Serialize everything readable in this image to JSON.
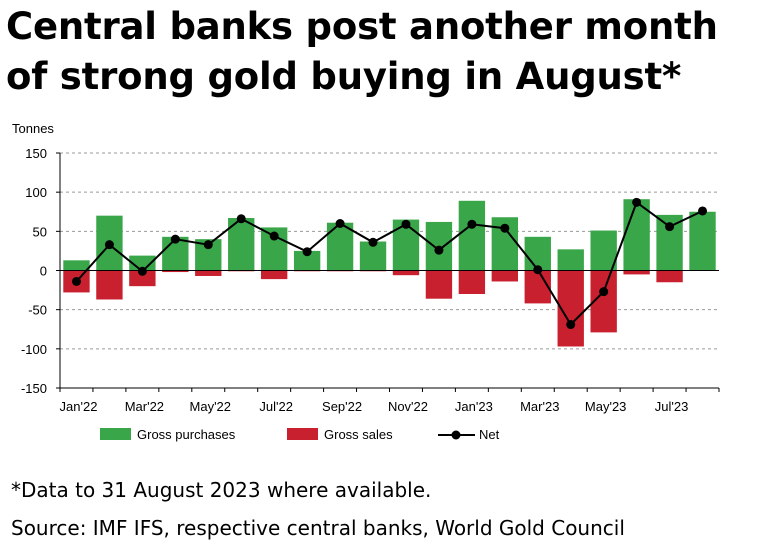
{
  "headline": {
    "line1": "Central banks post another month",
    "line2": "of strong gold buying in August*"
  },
  "footnote": "*Data to 31 August 2023 where available.",
  "source": "Source: IMF IFS, respective central banks, World Gold Council",
  "colors": {
    "gross_purchases": "#3aa64a",
    "gross_sales": "#c8202e",
    "net": "#000000",
    "grid": "#9a9a9a"
  },
  "chart_data": {
    "type": "bar",
    "title": "",
    "ylabel": "Tonnes",
    "xlabel": "",
    "ylim": [
      -150,
      150
    ],
    "yticks": [
      150,
      100,
      50,
      0,
      -50,
      -100,
      -150
    ],
    "grid": true,
    "legend_position": "bottom",
    "categories": [
      "Jan'22",
      "Feb'22",
      "Mar'22",
      "Apr'22",
      "May'22",
      "Jun'22",
      "Jul'22",
      "Aug'22",
      "Sep'22",
      "Oct'22",
      "Nov'22",
      "Dec'22",
      "Jan'23",
      "Feb'23",
      "Mar'23",
      "Apr'23",
      "May'23",
      "Jun'23",
      "Jul'23",
      "Aug'23"
    ],
    "x_tick_labels": [
      "Jan'22",
      "",
      "Mar'22",
      "",
      "May'22",
      "",
      "Jul'22",
      "",
      "Sep'22",
      "",
      "Nov'22",
      "",
      "Jan'23",
      "",
      "Mar'23",
      "",
      "May'23",
      "",
      "Jul'23",
      ""
    ],
    "series": [
      {
        "name": "Gross purchases",
        "type": "bar",
        "values": [
          13,
          70,
          19,
          43,
          40,
          67,
          55,
          25,
          61,
          37,
          65,
          62,
          89,
          68,
          43,
          27,
          51,
          91,
          71,
          75
        ]
      },
      {
        "name": "Gross sales",
        "type": "bar",
        "values": [
          -28,
          -37,
          -20,
          -2,
          -7,
          -1,
          -11,
          -1,
          -1,
          -1,
          -6,
          -36,
          -30,
          -14,
          -42,
          -97,
          -79,
          -5,
          -15,
          0
        ]
      },
      {
        "name": "Net",
        "type": "line",
        "values": [
          -14,
          33,
          -1,
          40,
          33,
          66,
          44,
          24,
          60,
          36,
          59,
          26,
          59,
          54,
          1,
          -69,
          -27,
          87,
          56,
          76
        ]
      }
    ]
  }
}
